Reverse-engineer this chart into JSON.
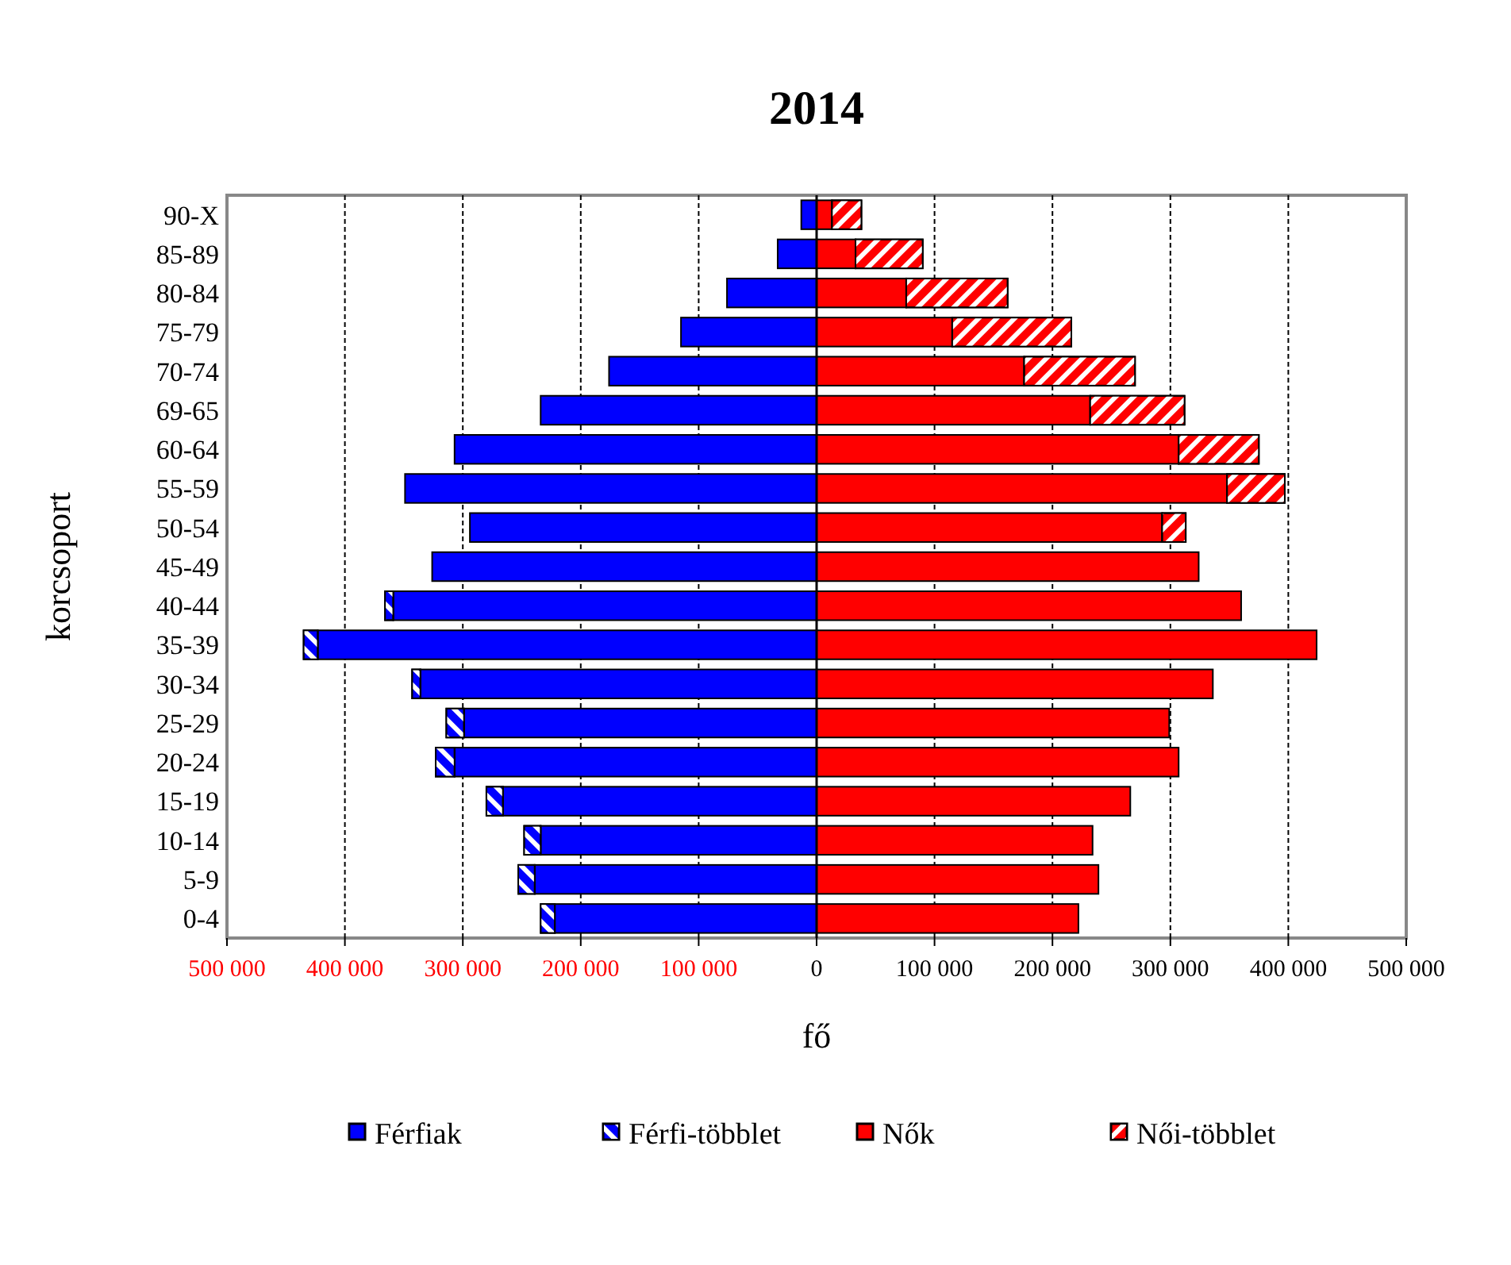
{
  "chart_data": {
    "type": "bar",
    "orientation": "horizontal",
    "stacked": true,
    "title": "2014",
    "xlabel": "fő",
    "ylabel": "korcsoport",
    "categories": [
      "90-X",
      "85-89",
      "80-84",
      "75-79",
      "70-74",
      "69-65",
      "60-64",
      "55-59",
      "50-54",
      "45-49",
      "40-44",
      "35-39",
      "30-34",
      "25-29",
      "20-24",
      "15-19",
      "10-14",
      "5-9",
      "0-4"
    ],
    "series": [
      {
        "name": "Férfiak",
        "color": "#0000ff",
        "values": [
          -13000,
          -33000,
          -76000,
          -115000,
          -176000,
          -234000,
          -307000,
          -349000,
          -294000,
          -326000,
          -359000,
          -423000,
          -336000,
          -299000,
          -307000,
          -266000,
          -234000,
          -239000,
          -222000
        ]
      },
      {
        "name": "Férfi-többlet",
        "color": "#0000ff",
        "values": [
          null,
          null,
          null,
          null,
          null,
          null,
          null,
          null,
          null,
          null,
          -7000,
          -12000,
          -7000,
          -15000,
          -16000,
          -14000,
          -14000,
          -14000,
          -12000
        ]
      },
      {
        "name": "Nők",
        "color": "#ff0000",
        "values": [
          13000,
          33000,
          76000,
          115000,
          176000,
          232000,
          307000,
          348000,
          293000,
          324000,
          360000,
          424000,
          336000,
          299000,
          307000,
          266000,
          234000,
          239000,
          222000
        ]
      },
      {
        "name": "Női-többlet",
        "color": "#ff0000",
        "values": [
          25000,
          57000,
          86000,
          101000,
          94000,
          80000,
          68000,
          49000,
          20000,
          null,
          null,
          null,
          null,
          null,
          null,
          null,
          null,
          null,
          null
        ]
      }
    ],
    "xlim": [
      -500000,
      500000
    ],
    "xticks": [
      {
        "value": -500000,
        "label": "500 000"
      },
      {
        "value": -400000,
        "label": "400 000"
      },
      {
        "value": -300000,
        "label": "300 000"
      },
      {
        "value": -200000,
        "label": "200 000"
      },
      {
        "value": -100000,
        "label": "100 000"
      },
      0,
      {
        "value": 100000,
        "label": "100 000"
      },
      {
        "value": 200000,
        "label": "200 000"
      },
      {
        "value": 300000,
        "label": "300 000"
      },
      {
        "value": 400000,
        "label": "400 000"
      },
      {
        "value": 500000,
        "label": "500 000"
      }
    ],
    "grid": "x",
    "legend": "bottom"
  }
}
